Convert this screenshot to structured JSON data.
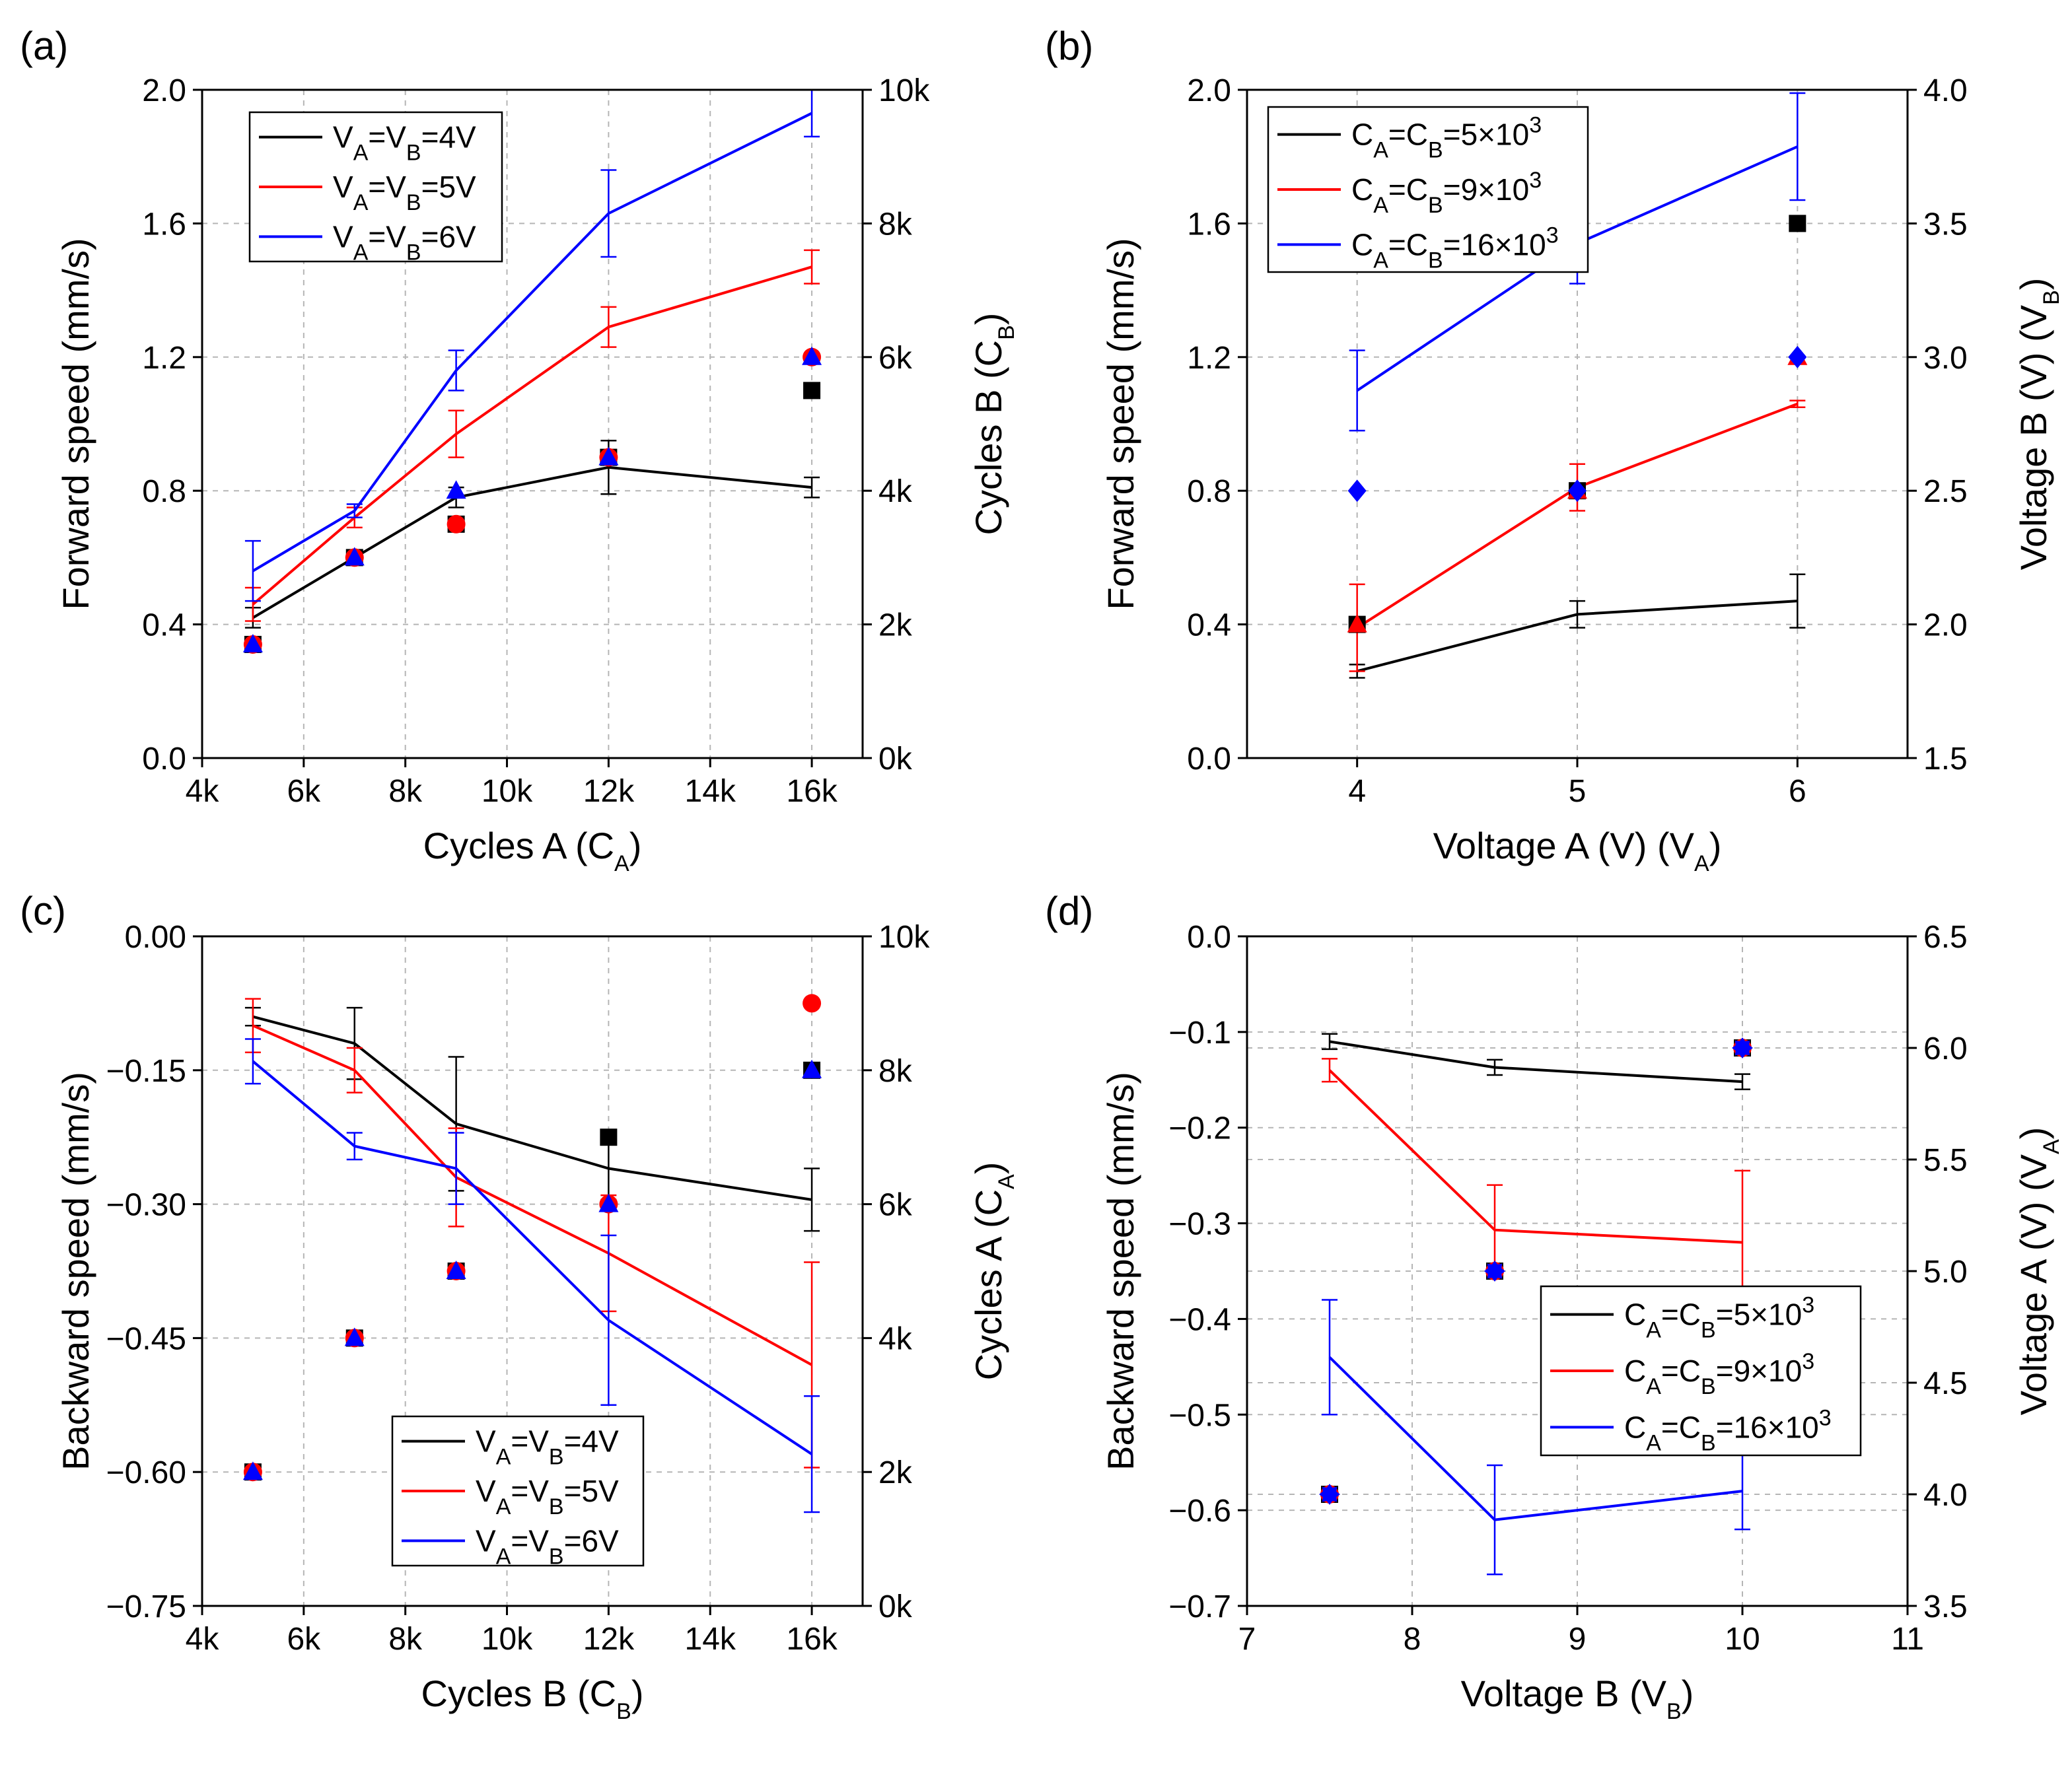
{
  "chart_data": [
    {
      "id": "a",
      "type": "line",
      "panel_label": "(a)",
      "xlabel": "Cycles A (C_A)",
      "ylabel": "Forward speed (mm/s)",
      "y2label": "Cycles B (C_B)",
      "xlim": [
        4000,
        17000
      ],
      "ylim": [
        0,
        2.0
      ],
      "y2lim": [
        0,
        10000
      ],
      "xticks": [
        4000,
        6000,
        8000,
        10000,
        12000,
        14000,
        16000
      ],
      "xtick_labels": [
        "4k",
        "6k",
        "8k",
        "10k",
        "12k",
        "14k",
        "16k"
      ],
      "yticks": [
        0,
        0.4,
        0.8,
        1.2,
        1.6,
        2.0
      ],
      "ytick_labels": [
        "0.0",
        "0.4",
        "0.8",
        "1.2",
        "1.6",
        "2.0"
      ],
      "y2ticks": [
        0,
        2000,
        4000,
        6000,
        8000,
        10000
      ],
      "y2tick_labels": [
        "0k",
        "2k",
        "4k",
        "6k",
        "8k",
        "10k"
      ],
      "grid": true,
      "legend_position": "top-left",
      "series": [
        {
          "name": "V_A=V_B=4V",
          "color": "#000000",
          "x": [
            5000,
            7000,
            9000,
            12000,
            16000
          ],
          "y": [
            0.42,
            0.6,
            0.78,
            0.87,
            0.81
          ],
          "err": [
            0.03,
            0.02,
            0.03,
            0.08,
            0.03
          ]
        },
        {
          "name": "V_A=V_B=5V",
          "color": "#ff0000",
          "x": [
            5000,
            7000,
            9000,
            12000,
            16000
          ],
          "y": [
            0.46,
            0.72,
            0.97,
            1.29,
            1.47
          ],
          "err": [
            0.05,
            0.03,
            0.07,
            0.06,
            0.05
          ]
        },
        {
          "name": "V_A=V_B=6V",
          "color": "#0000ff",
          "x": [
            5000,
            7000,
            9000,
            12000,
            16000
          ],
          "y": [
            0.56,
            0.74,
            1.16,
            1.63,
            1.93
          ],
          "err": [
            0.09,
            0.02,
            0.06,
            0.13,
            0.07
          ]
        }
      ],
      "markers": [
        {
          "shape": "square",
          "color": "#000000",
          "x": [
            5000,
            7000,
            9000,
            12000,
            16000
          ],
          "y2": [
            1700,
            3000,
            3500,
            4500,
            5500
          ]
        },
        {
          "shape": "circle",
          "color": "#ff0000",
          "x": [
            5000,
            7000,
            9000,
            12000,
            16000
          ],
          "y2": [
            1700,
            3000,
            3500,
            4500,
            6000
          ]
        },
        {
          "shape": "triangle",
          "color": "#0000ff",
          "x": [
            5000,
            7000,
            9000,
            12000,
            16000
          ],
          "y2": [
            1700,
            3000,
            4000,
            4500,
            6000
          ]
        }
      ]
    },
    {
      "id": "b",
      "type": "line",
      "panel_label": "(b)",
      "xlabel": "Voltage A (V) (V_A)",
      "ylabel": "Forward speed (mm/s)",
      "y2label": "Voltage B (V) (V_B)",
      "xlim": [
        3.5,
        6.5
      ],
      "ylim": [
        0,
        2.0
      ],
      "y2lim": [
        1.5,
        4.0
      ],
      "xticks": [
        4,
        5,
        6
      ],
      "xtick_labels": [
        "4",
        "5",
        "6"
      ],
      "yticks": [
        0,
        0.4,
        0.8,
        1.2,
        1.6,
        2.0
      ],
      "ytick_labels": [
        "0.0",
        "0.4",
        "0.8",
        "1.2",
        "1.6",
        "2.0"
      ],
      "y2ticks": [
        1.5,
        2.0,
        2.5,
        3.0,
        3.5,
        4.0
      ],
      "y2tick_labels": [
        "1.5",
        "2.0",
        "2.5",
        "3.0",
        "3.5",
        "4.0"
      ],
      "grid": true,
      "legend_position": "top-left",
      "series": [
        {
          "name": "C_A=C_B=5×10^3",
          "color": "#000000",
          "x": [
            4,
            5,
            6
          ],
          "y": [
            0.26,
            0.43,
            0.47
          ],
          "err": [
            0.02,
            0.04,
            0.08
          ]
        },
        {
          "name": "C_A=C_B=9×10^3",
          "color": "#ff0000",
          "x": [
            4,
            5,
            6
          ],
          "y": [
            0.39,
            0.81,
            1.06
          ],
          "err": [
            0.13,
            0.07,
            0.01
          ]
        },
        {
          "name": "C_A=C_B=16×10^3",
          "color": "#0000ff",
          "x": [
            4,
            5,
            6
          ],
          "y": [
            1.1,
            1.54,
            1.83
          ],
          "err": [
            0.12,
            0.12,
            0.16
          ]
        }
      ],
      "markers": [
        {
          "shape": "square",
          "color": "#000000",
          "x": [
            4,
            5,
            6
          ],
          "y2": [
            2.0,
            2.5,
            3.5
          ]
        },
        {
          "shape": "triangle",
          "color": "#ff0000",
          "x": [
            4,
            5,
            6
          ],
          "y2": [
            2.0,
            2.5,
            3.0
          ]
        },
        {
          "shape": "diamond",
          "color": "#0000ff",
          "x": [
            4,
            5,
            6
          ],
          "y2": [
            2.5,
            2.5,
            3.0
          ]
        }
      ]
    },
    {
      "id": "c",
      "type": "line",
      "panel_label": "(c)",
      "xlabel": "Cycles B (C_B)",
      "ylabel": "Backward speed (mm/s)",
      "y2label": "Cycles A (C_A)",
      "xlim": [
        4000,
        17000
      ],
      "ylim": [
        -0.75,
        0.0
      ],
      "y2lim": [
        0,
        10000
      ],
      "xticks": [
        4000,
        6000,
        8000,
        10000,
        12000,
        14000,
        16000
      ],
      "xtick_labels": [
        "4k",
        "6k",
        "8k",
        "10k",
        "12k",
        "14k",
        "16k"
      ],
      "yticks": [
        -0.75,
        -0.6,
        -0.45,
        -0.3,
        -0.15,
        0.0
      ],
      "ytick_labels": [
        "−0.75",
        "−0.60",
        "−0.45",
        "−0.30",
        "−0.15",
        "0.00"
      ],
      "y2ticks": [
        0,
        2000,
        4000,
        6000,
        8000,
        10000
      ],
      "y2tick_labels": [
        "0k",
        "2k",
        "4k",
        "6k",
        "8k",
        "10k"
      ],
      "grid": true,
      "legend_position": "bottom-center",
      "series": [
        {
          "name": "V_A=V_B=4V",
          "color": "#000000",
          "x": [
            5000,
            7000,
            9000,
            12000,
            16000
          ],
          "y": [
            -0.09,
            -0.12,
            -0.21,
            -0.26,
            -0.295
          ],
          "err": [
            0.01,
            0.04,
            0.075,
            0.035,
            0.035
          ]
        },
        {
          "name": "V_A=V_B=5V",
          "color": "#ff0000",
          "x": [
            5000,
            7000,
            9000,
            12000,
            16000
          ],
          "y": [
            -0.1,
            -0.15,
            -0.27,
            -0.355,
            -0.48
          ],
          "err": [
            0.03,
            0.025,
            0.055,
            0.065,
            0.115
          ]
        },
        {
          "name": "V_A=V_B=6V",
          "color": "#0000ff",
          "x": [
            5000,
            7000,
            9000,
            12000,
            16000
          ],
          "y": [
            -0.14,
            -0.235,
            -0.26,
            -0.43,
            -0.58
          ],
          "err": [
            0.025,
            0.015,
            0.04,
            0.095,
            0.065
          ]
        }
      ],
      "markers": [
        {
          "shape": "square",
          "color": "#000000",
          "x": [
            5000,
            7000,
            9000,
            12000,
            16000
          ],
          "y2": [
            2000,
            4000,
            5000,
            7000,
            8000
          ]
        },
        {
          "shape": "circle",
          "color": "#ff0000",
          "x": [
            5000,
            7000,
            9000,
            12000,
            16000
          ],
          "y2": [
            2000,
            4000,
            5000,
            6000,
            9000
          ]
        },
        {
          "shape": "triangle",
          "color": "#0000ff",
          "x": [
            5000,
            7000,
            9000,
            12000,
            16000
          ],
          "y2": [
            2000,
            4000,
            5000,
            6000,
            8000
          ]
        }
      ]
    },
    {
      "id": "d",
      "type": "line",
      "panel_label": "(d)",
      "xlabel": "Voltage B (V_B)",
      "ylabel": "Backward speed (mm/s)",
      "y2label": "Voltage A (V) (V_A)",
      "xlim": [
        7,
        11
      ],
      "ylim": [
        -0.7,
        0.0
      ],
      "y2lim": [
        3.5,
        6.5
      ],
      "xticks": [
        7,
        8,
        9,
        10,
        11
      ],
      "xtick_labels": [
        "7",
        "8",
        "9",
        "10",
        "11"
      ],
      "yticks": [
        -0.7,
        -0.6,
        -0.5,
        -0.4,
        -0.3,
        -0.2,
        -0.1,
        0.0
      ],
      "ytick_labels": [
        "−0.7",
        "−0.6",
        "−0.5",
        "−0.4",
        "−0.3",
        "−0.2",
        "−0.1",
        "0.0"
      ],
      "y2ticks": [
        3.5,
        4.0,
        4.5,
        5.0,
        5.5,
        6.0,
        6.5
      ],
      "y2tick_labels": [
        "3.5",
        "4.0",
        "4.5",
        "5.0",
        "5.5",
        "6.0",
        "6.5"
      ],
      "grid": true,
      "legend_position": "middle-right",
      "series": [
        {
          "name": "C_A=C_B=5×10^3",
          "color": "#000000",
          "x": [
            7.5,
            8.5,
            10
          ],
          "y": [
            -0.11,
            -0.137,
            -0.152
          ],
          "err": [
            0.008,
            0.008,
            0.008
          ]
        },
        {
          "name": "C_A=C_B=9×10^3",
          "color": "#ff0000",
          "x": [
            7.5,
            8.5,
            10
          ],
          "y": [
            -0.14,
            -0.307,
            -0.32
          ],
          "err": [
            0.012,
            0.047,
            0.075
          ]
        },
        {
          "name": "C_A=C_B=16×10^3",
          "color": "#0000ff",
          "x": [
            7.5,
            8.5,
            10
          ],
          "y": [
            -0.44,
            -0.61,
            -0.58
          ],
          "err": [
            0.06,
            0.057,
            0.04
          ]
        }
      ],
      "markers": [
        {
          "shape": "square",
          "color": "#000000",
          "x": [
            7.5,
            8.5,
            10
          ],
          "y2": [
            4.0,
            5.0,
            6.0
          ]
        },
        {
          "shape": "circle",
          "color": "#ff0000",
          "x": [
            7.5,
            8.5,
            10
          ],
          "y2": [
            4.0,
            5.0,
            6.0
          ]
        },
        {
          "shape": "star",
          "color": "#0000ff",
          "x": [
            7.5,
            8.5,
            10
          ],
          "y2": [
            4.0,
            5.0,
            6.0
          ]
        }
      ],
      "extra_grid_y2": [
        4.0,
        4.5,
        5.0,
        5.5,
        6.0
      ]
    }
  ]
}
